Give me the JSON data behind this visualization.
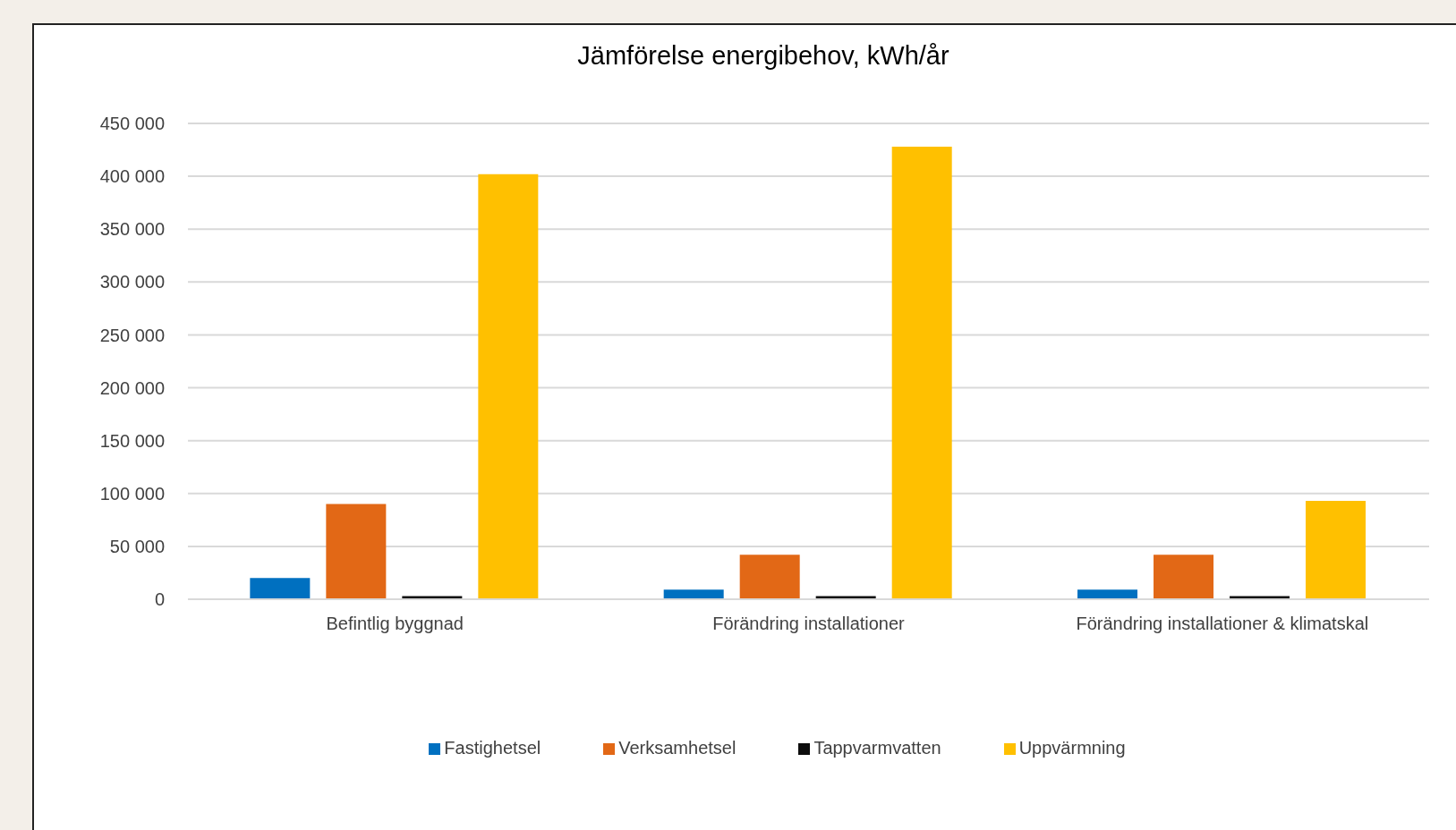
{
  "chart_data": {
    "type": "bar",
    "title": "Jämförelse energibehov, kWh/år",
    "categories": [
      "Befintlig byggnad",
      "Förändring installationer",
      "Förändring installationer & klimatskal"
    ],
    "series": [
      {
        "name": "Fastighetsel",
        "color": "#0070c0",
        "values": [
          20000,
          9000,
          9000
        ]
      },
      {
        "name": "Verksamhetsel",
        "color": "#e26816",
        "values": [
          90000,
          42000,
          42000
        ]
      },
      {
        "name": "Tappvarmvatten",
        "color": "#0d0d0d",
        "values": [
          3000,
          3000,
          3000
        ]
      },
      {
        "name": "Uppvärmning",
        "color": "#ffc000",
        "values": [
          402000,
          428000,
          93000
        ]
      }
    ],
    "ylim": [
      0,
      450000
    ],
    "yticks": [
      {
        "value": 0,
        "label": "0"
      },
      {
        "value": 50000,
        "label": "50 000"
      },
      {
        "value": 100000,
        "label": "100 000"
      },
      {
        "value": 150000,
        "label": "150 000"
      },
      {
        "value": 200000,
        "label": "200 000"
      },
      {
        "value": 250000,
        "label": "250 000"
      },
      {
        "value": 300000,
        "label": "300 000"
      },
      {
        "value": 350000,
        "label": "350 000"
      },
      {
        "value": 400000,
        "label": "400 000"
      },
      {
        "value": 450000,
        "label": "450 000"
      }
    ],
    "grid": "y",
    "legend": "bottom"
  }
}
